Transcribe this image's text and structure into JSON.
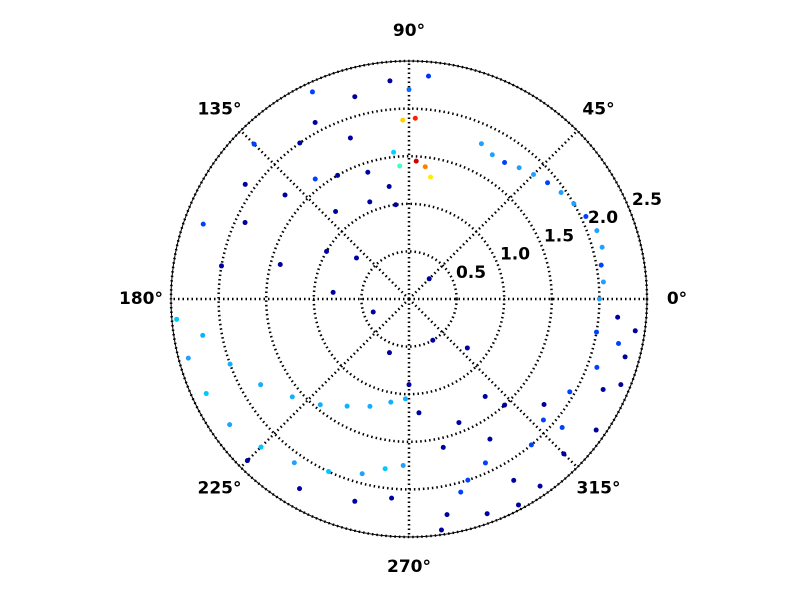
{
  "chart_data": {
    "type": "polar",
    "xlim": [
      0,
      360
    ],
    "xticks": [
      {
        "value": 0,
        "label": "0°"
      },
      {
        "value": 45,
        "label": "45°"
      },
      {
        "value": 90,
        "label": "90°"
      },
      {
        "value": 135,
        "label": "135°"
      },
      {
        "value": 180,
        "label": "180°"
      },
      {
        "value": 225,
        "label": "225°"
      },
      {
        "value": 270,
        "label": "270°"
      },
      {
        "value": 315,
        "label": "315°"
      }
    ],
    "ylim": [
      0,
      2.5
    ],
    "yticks": [
      0.5,
      {
        "value": 1,
        "label": "1.0"
      },
      1.5,
      {
        "value": 2,
        "label": "2.0"
      },
      2.5
    ],
    "grid": true,
    "x": [
      280,
      285,
      290,
      295,
      300,
      305,
      310,
      315,
      320,
      325,
      330,
      335,
      340,
      345,
      350,
      355,
      283,
      292,
      300,
      312,
      322,
      288,
      298,
      318,
      338,
      348,
      308,
      275,
      278,
      352,
      0,
      5,
      10,
      15,
      20,
      25,
      30,
      35,
      40,
      45,
      50,
      55,
      60,
      65,
      88,
      92,
      87,
      83,
      94,
      80,
      96,
      90,
      95,
      85,
      100,
      98,
      105,
      110,
      115,
      120,
      125,
      130,
      135,
      140,
      145,
      150,
      155,
      160,
      165,
      170,
      175,
      112,
      128,
      142,
      118,
      108,
      185,
      195,
      205,
      215,
      225,
      235,
      245,
      255,
      262,
      268,
      225,
      240,
      255,
      265,
      190,
      200,
      210,
      220,
      230,
      240,
      250,
      260,
      268,
      250,
      300,
      320,
      200,
      45,
      270
    ],
    "values": [
      2.3,
      2.1,
      2.4,
      1.9,
      2.2,
      2.4,
      2.0,
      2.3,
      2.1,
      2.4,
      1.95,
      2.25,
      2.1,
      2.35,
      2.0,
      2.2,
      1.6,
      1.4,
      1.7,
      1.5,
      1.8,
      2.0,
      2.45,
      1.9,
      2.4,
      2.25,
      1.3,
      1.2,
      2.45,
      2.4,
      2.0,
      2.05,
      2.05,
      2.1,
      2.1,
      2.05,
      2.0,
      1.95,
      1.9,
      1.85,
      1.8,
      1.75,
      1.75,
      1.8,
      1.9,
      1.88,
      1.45,
      1.4,
      1.4,
      1.3,
      1.55,
      2.2,
      2.3,
      2.35,
      1.2,
      1.0,
      2.2,
      1.8,
      2.4,
      1.5,
      2.0,
      1.2,
      2.3,
      1.7,
      2.1,
      1.0,
      1.9,
      2.3,
      1.4,
      2.0,
      0.8,
      1.1,
      1.6,
      0.7,
      2.1,
      1.4,
      2.45,
      2.4,
      2.35,
      2.3,
      2.2,
      2.1,
      2.0,
      1.9,
      1.8,
      1.75,
      2.4,
      2.3,
      2.2,
      2.1,
      2.2,
      2.0,
      1.8,
      1.6,
      1.45,
      1.3,
      1.2,
      1.1,
      1.05,
      0.6,
      0.5,
      0.8,
      0.4,
      0.3,
      0.9
    ],
    "point_colors": [
      "#0000a0",
      "#0040ff",
      "#0000a0",
      "#0040ff",
      "#0000a0",
      "#0000a0",
      "#0040ff",
      "#0000a0",
      "#0040ff",
      "#0000a0",
      "#0040ff",
      "#0000a0",
      "#0040ff",
      "#0000a0",
      "#0040ff",
      "#0000a0",
      "#0000a0",
      "#0000a0",
      "#0000a0",
      "#0000a0",
      "#0000a0",
      "#0040ff",
      "#0000a0",
      "#0040ff",
      "#0000a0",
      "#0040ff",
      "#0000a0",
      "#0000a0",
      "#0000a0",
      "#0000a0",
      "#20a0ff",
      "#20a0ff",
      "#0040ff",
      "#20a0ff",
      "#20a0ff",
      "#0040ff",
      "#20a0ff",
      "#20a0ff",
      "#0040ff",
      "#20a0ff",
      "#20a0ff",
      "#0040ff",
      "#20a0ff",
      "#20a0ff",
      "#ff2000",
      "#ffd000",
      "#d00000",
      "#ff8000",
      "#40ffc0",
      "#ffee00",
      "#00d0ff",
      "#1070ff",
      "#0000a0",
      "#0030ff",
      "#0000a0",
      "#0000a0",
      "#0000a0",
      "#0000a0",
      "#0040ff",
      "#0000a0",
      "#0000a0",
      "#0000a0",
      "#0040ff",
      "#0000a0",
      "#0000a0",
      "#0000a0",
      "#0000a0",
      "#0040ff",
      "#0000a0",
      "#0000a0",
      "#0000a0",
      "#0000a0",
      "#0040ff",
      "#0000a0",
      "#0000a0",
      "#0000a0",
      "#00c8ff",
      "#20a0ff",
      "#00c8ff",
      "#20a0ff",
      "#00c8ff",
      "#20a0ff",
      "#00c8ff",
      "#20a0ff",
      "#00c8ff",
      "#20a0ff",
      "#0000a0",
      "#0000a0",
      "#0000a0",
      "#0000a0",
      "#10b0ff",
      "#10b0ff",
      "#10b0ff",
      "#10b0ff",
      "#10b0ff",
      "#10b0ff",
      "#10b0ff",
      "#10b0ff",
      "#10b0ff",
      "#0000a0",
      "#0000a0",
      "#0000a0",
      "#0000a0",
      "#0000a0",
      "#0000a0"
    ]
  }
}
